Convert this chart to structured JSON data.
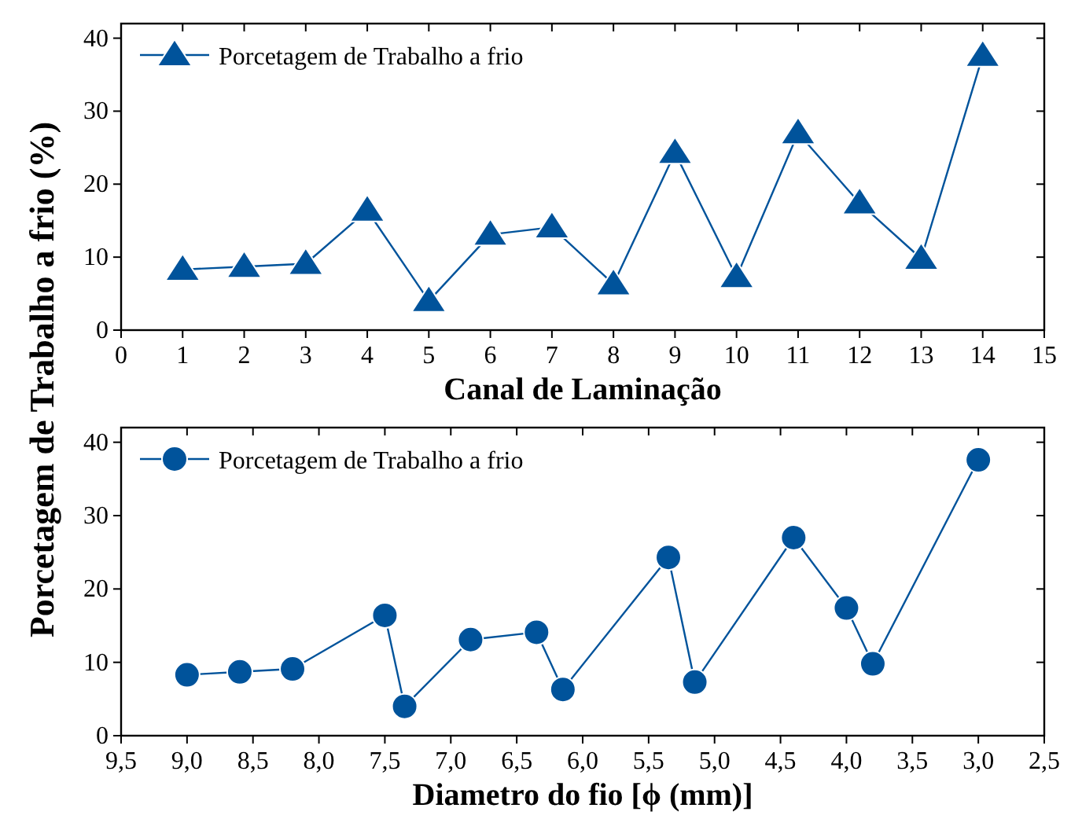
{
  "chart_data": [
    {
      "type": "line",
      "xlabel": "Canal de Laminação",
      "ylabel": "Porcetagem de Trabalho a frio (%)",
      "x": [
        1,
        2,
        3,
        4,
        5,
        6,
        7,
        8,
        9,
        10,
        11,
        12,
        13,
        14
      ],
      "xlim": [
        0,
        15
      ],
      "xticks": [
        0,
        1,
        2,
        3,
        4,
        5,
        6,
        7,
        8,
        9,
        10,
        11,
        12,
        13,
        14,
        15
      ],
      "ylim": [
        0,
        42
      ],
      "yticks": [
        0,
        10,
        20,
        30,
        40
      ],
      "marker": "triangle",
      "legend": "top left",
      "series": [
        {
          "name": "Porcetagem de Trabalho a frio",
          "color": "#00539b",
          "values": [
            8.3,
            8.7,
            9.1,
            16.4,
            4.0,
            13.1,
            14.1,
            6.3,
            24.3,
            7.3,
            27.0,
            17.4,
            9.8,
            37.6
          ]
        }
      ]
    },
    {
      "type": "line",
      "xlabel": "Diametro do fio [ϕ (mm)]",
      "x": [
        9.0,
        8.6,
        8.2,
        7.5,
        7.35,
        6.85,
        6.35,
        6.15,
        5.35,
        5.15,
        4.4,
        4.0,
        3.8,
        3.0
      ],
      "xlim": [
        9.5,
        2.5
      ],
      "xticks": [
        {
          "value": 9.5,
          "label": "9,5"
        },
        {
          "value": 9,
          "label": "9,0"
        },
        {
          "value": 8.5,
          "label": "8,5"
        },
        {
          "value": 8,
          "label": "8,0"
        },
        {
          "value": 7.5,
          "label": "7,5"
        },
        {
          "value": 7,
          "label": "7,0"
        },
        {
          "value": 6.5,
          "label": "6,5"
        },
        {
          "value": 6,
          "label": "6,0"
        },
        {
          "value": 5.5,
          "label": "5,5"
        },
        {
          "value": 5,
          "label": "5,0"
        },
        {
          "value": 4.5,
          "label": "4,5"
        },
        {
          "value": 4,
          "label": "4,0"
        },
        {
          "value": 3.5,
          "label": "3,5"
        },
        {
          "value": 3,
          "label": "3,0"
        },
        {
          "value": 2.5,
          "label": "2,5"
        }
      ],
      "ylim": [
        0,
        42
      ],
      "yticks": [
        0,
        10,
        20,
        30,
        40
      ],
      "marker": "circle",
      "legend": "top left",
      "series": [
        {
          "name": "Porcetagem de Trabalho a frio",
          "color": "#00539b",
          "values": [
            8.3,
            8.7,
            9.1,
            16.4,
            4.0,
            13.1,
            14.1,
            6.3,
            24.3,
            7.3,
            27.0,
            17.4,
            9.8,
            37.6
          ]
        }
      ]
    }
  ]
}
